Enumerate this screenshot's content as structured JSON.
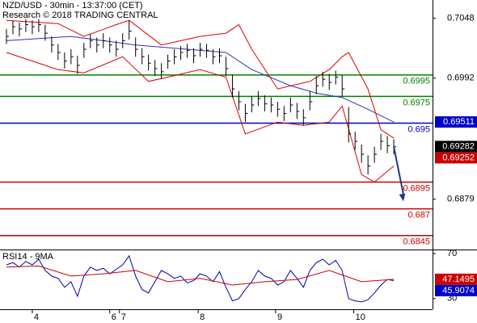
{
  "chart_data": {
    "type": "ohlc",
    "title": "NZD/USD - 30min - 13:37:00 (CET)",
    "subtitle": "Research © 2018 TRADING CENTRAL",
    "xlim": [
      -1,
      66
    ],
    "xticks": [
      {
        "value": 4,
        "label": "4"
      },
      {
        "value": 16,
        "label": "6"
      },
      {
        "value": 17.5,
        "label": "7"
      },
      {
        "value": 29.7,
        "label": "8"
      },
      {
        "value": 41.7,
        "label": "9"
      },
      {
        "value": 53.8,
        "label": "10"
      }
    ],
    "ylim": [
      0.6832,
      0.7065
    ],
    "yticks": [
      0.7048,
      0.6992,
      0.6879
    ],
    "color": "#000000",
    "close": [
      0.7031,
      0.704,
      0.7038,
      0.7042,
      0.704,
      0.7042,
      0.7034,
      0.7023,
      0.7016,
      0.7008,
      0.7012,
      0.7004,
      0.7019,
      0.7027,
      0.7023,
      0.7027,
      0.7023,
      0.7019,
      0.7027,
      0.7036,
      0.7019,
      0.7012,
      0.7006,
      0.7001,
      0.6998,
      0.7008,
      0.7012,
      0.7016,
      0.7018,
      0.7013,
      0.7019,
      0.7018,
      0.7012,
      0.7013,
      0.7001,
      0.6982,
      0.697,
      0.6959,
      0.6967,
      0.6973,
      0.6968,
      0.6967,
      0.6963,
      0.6959,
      0.6967,
      0.6961,
      0.6955,
      0.697,
      0.6985,
      0.6991,
      0.6988,
      0.6993,
      0.6982,
      0.694,
      0.6933,
      0.6921,
      0.691,
      0.6921,
      0.6933,
      0.6929,
      0.6928
    ],
    "high": [
      0.7038,
      0.7046,
      0.7044,
      0.7047,
      0.7046,
      0.7047,
      0.7042,
      0.7031,
      0.7024,
      0.7016,
      0.7019,
      0.7013,
      0.7025,
      0.7033,
      0.703,
      0.7034,
      0.703,
      0.7027,
      0.7034,
      0.7046,
      0.703,
      0.702,
      0.7014,
      0.7009,
      0.7006,
      0.7014,
      0.7019,
      0.7022,
      0.7024,
      0.702,
      0.7025,
      0.7024,
      0.7019,
      0.702,
      0.7012,
      0.6995,
      0.698,
      0.6968,
      0.6975,
      0.698,
      0.6976,
      0.6974,
      0.697,
      0.6966,
      0.6974,
      0.6969,
      0.6963,
      0.698,
      0.6994,
      0.6998,
      0.6996,
      0.6999,
      0.6995,
      0.6965,
      0.6942,
      0.693,
      0.692,
      0.6928,
      0.694,
      0.6938,
      0.6935
    ],
    "low": [
      0.7024,
      0.7033,
      0.7031,
      0.7035,
      0.7033,
      0.7035,
      0.7027,
      0.7016,
      0.7009,
      0.7001,
      0.7005,
      0.6996,
      0.7011,
      0.702,
      0.7016,
      0.702,
      0.7016,
      0.7012,
      0.702,
      0.7028,
      0.7012,
      0.7005,
      0.6999,
      0.6994,
      0.6991,
      0.7001,
      0.7005,
      0.7009,
      0.7011,
      0.7006,
      0.7012,
      0.7011,
      0.7005,
      0.7006,
      0.6994,
      0.6974,
      0.6962,
      0.6951,
      0.696,
      0.6966,
      0.6961,
      0.696,
      0.6956,
      0.6952,
      0.696,
      0.6954,
      0.6948,
      0.6962,
      0.6977,
      0.6984,
      0.6981,
      0.6986,
      0.6975,
      0.6932,
      0.6925,
      0.6913,
      0.6902,
      0.6913,
      0.6925,
      0.6922,
      0.6921
    ],
    "overlays": [
      {
        "color": "#3333aa",
        "x": [
          0,
          10,
          20,
          28,
          34,
          38,
          44,
          48,
          52,
          56,
          60
        ],
        "values": [
          0.7027,
          0.7031,
          0.7023,
          0.7019,
          0.7016,
          0.7,
          0.6985,
          0.6978,
          0.6974,
          0.6963,
          0.6951
        ]
      },
      {
        "color": "#dd0000",
        "x": [
          0,
          8,
          12,
          17,
          19,
          24,
          30,
          34,
          36,
          38,
          42,
          47,
          50,
          52,
          53,
          56,
          58,
          60
        ],
        "values": [
          0.7046,
          0.7043,
          0.7031,
          0.7042,
          0.7046,
          0.7023,
          0.7031,
          0.7034,
          0.7042,
          0.7019,
          0.6982,
          0.6989,
          0.7,
          0.7012,
          0.7016,
          0.6982,
          0.6944,
          0.6936
        ]
      },
      {
        "color": "#dd0000",
        "x": [
          0,
          8,
          12,
          18,
          22,
          25,
          30,
          34,
          37,
          42,
          46,
          50,
          52,
          55,
          57,
          60
        ],
        "values": [
          0.7016,
          0.7,
          0.6997,
          0.7012,
          0.6989,
          0.6993,
          0.7,
          0.6993,
          0.694,
          0.6951,
          0.6948,
          0.6951,
          0.6966,
          0.6902,
          0.6895,
          0.691
        ]
      }
    ],
    "levels": [
      {
        "value": 0.6995,
        "color": "#008000"
      },
      {
        "value": 0.6975,
        "color": "#008000"
      },
      {
        "value": 0.695,
        "color": "#0000cc"
      },
      {
        "value": 0.6895,
        "color": "#cc0000"
      },
      {
        "value": 0.687,
        "color": "#cc0000"
      },
      {
        "value": 0.6845,
        "color": "#cc0000"
      }
    ],
    "arrow": {
      "color": "#1a3a8a",
      "x": [
        60,
        61.5
      ],
      "values": [
        0.6928,
        0.6877
      ]
    },
    "tags": [
      {
        "value": 0.69511,
        "color": "#0000cc"
      },
      {
        "value": 0.69282,
        "color": "#000000"
      },
      {
        "value": 0.69252,
        "color": "#cc0000"
      }
    ],
    "rsi": {
      "title": "RSI14 - 9MA",
      "ylim": [
        20.5,
        72.9
      ],
      "yticks": [
        70,
        30
      ],
      "color": "#0000aa",
      "values": [
        60,
        62,
        58,
        63,
        60,
        65,
        55,
        50,
        48,
        40,
        45,
        32,
        50,
        58,
        55,
        57,
        52,
        56,
        60,
        68,
        50,
        38,
        35,
        45,
        55,
        52,
        48,
        50,
        44,
        46,
        52,
        50,
        45,
        54,
        40,
        28,
        30,
        38,
        45,
        55,
        50,
        48,
        42,
        45,
        55,
        48,
        40,
        55,
        62,
        65,
        60,
        64,
        55,
        30,
        28,
        27,
        29,
        35,
        42,
        47,
        46
      ],
      "ma": {
        "color": "#cc0000",
        "x": [
          0,
          5,
          10,
          15,
          20,
          25,
          30,
          35,
          40,
          45,
          50,
          55,
          60
        ],
        "values": [
          58,
          59,
          50,
          52,
          55,
          45,
          48,
          42,
          45,
          47,
          55,
          45,
          47.1
        ]
      },
      "tags": [
        {
          "value": 47.1495,
          "color": "#cc0000"
        },
        {
          "value": 45.9074,
          "color": "#0000cc"
        }
      ]
    }
  }
}
